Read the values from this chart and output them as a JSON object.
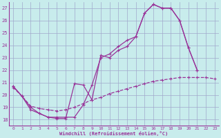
{
  "xlabel": "Windchill (Refroidissement éolien,°C)",
  "bg_color": "#c8ecec",
  "grid_color": "#a0a8cc",
  "line_color": "#993399",
  "xlim": [
    -0.5,
    23.5
  ],
  "ylim": [
    17.5,
    27.5
  ],
  "xticks": [
    0,
    1,
    2,
    3,
    4,
    5,
    6,
    7,
    8,
    9,
    10,
    11,
    12,
    13,
    14,
    15,
    16,
    17,
    18,
    19,
    20,
    21,
    22,
    23
  ],
  "yticks": [
    18,
    19,
    20,
    21,
    22,
    23,
    24,
    25,
    26,
    27
  ],
  "line1_x": [
    0,
    1,
    2,
    3,
    4,
    5,
    6,
    7,
    8,
    9,
    10,
    11,
    12,
    13,
    14,
    15,
    16,
    17,
    18,
    19,
    20,
    21
  ],
  "line1_y": [
    20.7,
    19.9,
    19.0,
    18.5,
    18.2,
    18.1,
    18.1,
    20.9,
    20.8,
    19.6,
    23.2,
    23.0,
    23.6,
    23.9,
    24.7,
    26.6,
    27.3,
    27.0,
    27.0,
    26.0,
    23.8,
    22.0
  ],
  "line2_x": [
    0,
    1,
    2,
    3,
    4,
    5,
    6,
    7,
    8,
    9,
    10,
    11,
    12,
    13,
    14,
    15,
    16,
    17,
    18,
    19,
    20,
    21
  ],
  "line2_y": [
    20.7,
    19.9,
    18.8,
    18.5,
    18.2,
    18.2,
    18.2,
    18.2,
    19.2,
    20.8,
    23.0,
    23.3,
    23.9,
    24.4,
    24.7,
    26.6,
    27.3,
    27.0,
    27.0,
    26.0,
    23.8,
    22.0
  ],
  "line3_x": [
    0,
    1,
    2,
    3,
    4,
    5,
    6,
    7,
    8,
    9,
    10,
    11,
    12,
    13,
    14,
    15,
    16,
    17,
    18,
    19,
    20,
    21,
    22,
    23
  ],
  "line3_y": [
    20.6,
    19.9,
    19.1,
    18.9,
    18.8,
    18.7,
    18.8,
    19.0,
    19.3,
    19.6,
    19.8,
    20.1,
    20.3,
    20.5,
    20.7,
    20.9,
    21.1,
    21.2,
    21.3,
    21.4,
    21.4,
    21.4,
    21.4,
    21.3
  ]
}
